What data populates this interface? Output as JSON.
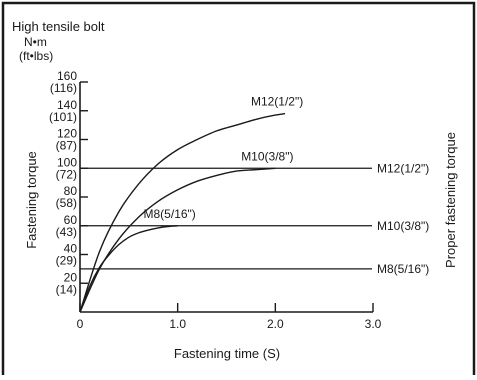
{
  "chart_data": {
    "type": "line",
    "title": "High tensile bolt",
    "unit_primary": "N•m",
    "unit_secondary": "(ft•lbs)",
    "xlabel": "Fastening time (S)",
    "ylabel": "Fastening torque",
    "ylabel_right": "Proper fastening torque",
    "xlim": [
      0,
      3.0
    ],
    "ylim": [
      0,
      160
    ],
    "x_ticks": [
      {
        "value": 0,
        "label": "0"
      },
      {
        "value": 1.0,
        "label": "1.0"
      },
      {
        "value": 2.0,
        "label": "2.0"
      },
      {
        "value": 3.0,
        "label": "3.0"
      }
    ],
    "y_ticks": [
      {
        "value": 20,
        "label": "20",
        "sub": "(14)"
      },
      {
        "value": 40,
        "label": "40",
        "sub": "(29)"
      },
      {
        "value": 60,
        "label": "60",
        "sub": "(43)"
      },
      {
        "value": 80,
        "label": "80",
        "sub": "(58)"
      },
      {
        "value": 100,
        "label": "100",
        "sub": "(72)"
      },
      {
        "value": 120,
        "label": "120",
        "sub": "(87)"
      },
      {
        "value": 140,
        "label": "140",
        "sub": "(101)"
      },
      {
        "value": 160,
        "label": "160",
        "sub": "(116)"
      }
    ],
    "series": [
      {
        "name": "M12(1/2\")",
        "x": [
          0,
          0.2,
          0.4,
          0.6,
          0.8,
          1.0,
          1.2,
          1.4,
          1.6,
          1.8,
          2.0,
          2.1
        ],
        "y": [
          0,
          42,
          70,
          89,
          103,
          113,
          120,
          126,
          130,
          134,
          137,
          138
        ]
      },
      {
        "name": "M10(3/8\")",
        "x": [
          0,
          0.2,
          0.4,
          0.6,
          0.8,
          1.0,
          1.2,
          1.4,
          1.6,
          1.8,
          2.0
        ],
        "y": [
          0,
          30,
          51,
          66,
          77,
          85,
          91,
          95,
          98,
          99,
          100
        ]
      },
      {
        "name": "M8(5/16\")",
        "x": [
          0,
          0.1,
          0.2,
          0.3,
          0.4,
          0.5,
          0.6,
          0.7,
          0.8,
          0.9,
          1.0
        ],
        "y": [
          0,
          18,
          31,
          40,
          47,
          52,
          55,
          57,
          58.5,
          59.5,
          60
        ]
      }
    ],
    "reference_lines": [
      {
        "name": "M12(1/2\")",
        "y": 100
      },
      {
        "name": "M10(3/8\")",
        "y": 60
      },
      {
        "name": "M8(5/16\")",
        "y": 30
      }
    ]
  },
  "colors": {
    "line": "#1a1a1a",
    "background": "#ffffff"
  }
}
